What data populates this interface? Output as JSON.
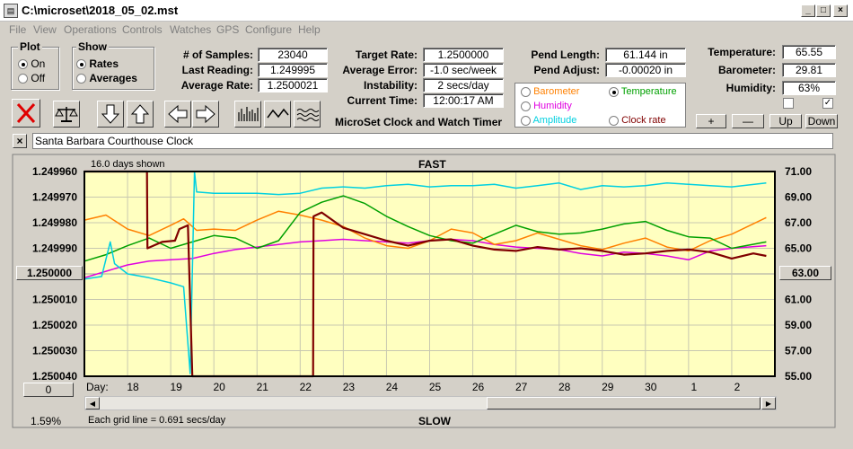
{
  "window": {
    "title": "C:\\microset\\2018_05_02.mst",
    "minimize": "_",
    "maximize": "□",
    "close": "×"
  },
  "menu": [
    "File",
    "View",
    "Operations",
    "Controls",
    "Watches",
    "GPS",
    "Configure",
    "Help"
  ],
  "plot_group": {
    "title": "Plot",
    "options": [
      "On",
      "Off"
    ],
    "selected": "On"
  },
  "show_group": {
    "title": "Show",
    "options": [
      "Rates",
      "Averages"
    ],
    "selected": "Rates"
  },
  "stats": {
    "num_samples_label": "# of Samples:",
    "num_samples": "23040",
    "last_reading_label": "Last Reading:",
    "last_reading": "1.249995",
    "average_rate_label": "Average Rate:",
    "average_rate": "1.2500021",
    "target_rate_label": "Target Rate:",
    "target_rate": "1.2500000",
    "average_error_label": "Average Error:",
    "average_error": "-1.0 sec/week",
    "instability_label": "Instability:",
    "instability": "2 secs/day",
    "current_time_label": "Current Time:",
    "current_time": "12:00:17 AM",
    "pend_length_label": "Pend Length:",
    "pend_length": "61.144 in",
    "pend_adjust_label": "Pend Adjust:",
    "pend_adjust": "-0.00020 in",
    "temperature_label": "Temperature:",
    "temperature": "65.55",
    "barometer_label": "Barometer:",
    "barometer": "29.81",
    "humidity_label": "Humidity:",
    "humidity": "63%"
  },
  "app_title": "MicroSet Clock and Watch Timer",
  "legend": {
    "items": [
      {
        "label": "Barometer",
        "color": "#ff8000",
        "selected": false
      },
      {
        "label": "Temperature",
        "color": "#00a000",
        "selected": true
      },
      {
        "label": "Humidity",
        "color": "#e000e0",
        "selected": false
      },
      {
        "label": "Clock rate",
        "color": "#800000",
        "selected": false
      },
      {
        "label": "Amplitude",
        "color": "#00d0e0",
        "selected": false
      }
    ]
  },
  "right_buttons": {
    "plus": "+",
    "minus": "—",
    "up": "Up",
    "down": "Down"
  },
  "checkboxes": [
    {
      "checked": false
    },
    {
      "checked": true
    }
  ],
  "description": {
    "close": "×",
    "text": "Santa Barbara Courthouse Clock"
  },
  "chart_data": {
    "type": "line",
    "top_label": "FAST",
    "bottom_label": "SLOW",
    "days_shown": "16.0 days shown",
    "grid_note": "Each grid line = 0.691 secs/day",
    "percent": "1.59%",
    "day_label": "Day:",
    "left_axis": {
      "ticks": [
        "1.249960",
        "1.249970",
        "1.249980",
        "1.249990",
        "1.250000",
        "1.250010",
        "1.250020",
        "1.250030",
        "1.250040"
      ],
      "range": [
        1.24996,
        1.25004
      ],
      "inverted": true,
      "center_button": "1.250000",
      "zero_button": "0"
    },
    "right_axis": {
      "ticks": [
        "71.00",
        "69.00",
        "67.00",
        "65.00",
        "63.00",
        "61.00",
        "59.00",
        "57.00",
        "55.00"
      ],
      "range": [
        55,
        71
      ],
      "center_button": "63.00"
    },
    "x_axis": {
      "ticks": [
        "18",
        "19",
        "20",
        "21",
        "22",
        "23",
        "24",
        "25",
        "26",
        "27",
        "28",
        "29",
        "30",
        "1",
        "2"
      ],
      "range": [
        17.0,
        33.0
      ]
    },
    "series": [
      {
        "name": "Barometer",
        "color": "#ff8000",
        "x": [
          17.0,
          17.5,
          18.0,
          18.5,
          19.0,
          19.3,
          19.6,
          20.0,
          20.5,
          21.0,
          21.5,
          22.0,
          22.5,
          23.0,
          23.5,
          24.0,
          24.5,
          25.0,
          25.5,
          26.0,
          26.5,
          27.0,
          27.5,
          28.0,
          28.5,
          29.0,
          29.5,
          30.0,
          30.5,
          31.0,
          31.5,
          32.0,
          32.8
        ],
        "values": [
          67.2,
          67.6,
          66.5,
          66.0,
          66.8,
          67.3,
          66.4,
          66.5,
          66.4,
          67.2,
          67.9,
          67.6,
          67.2,
          66.7,
          65.8,
          65.2,
          65.0,
          65.6,
          66.5,
          66.2,
          65.3,
          65.6,
          66.2,
          65.7,
          65.2,
          64.9,
          65.4,
          65.8,
          65.1,
          64.8,
          65.6,
          66.1,
          67.4
        ]
      },
      {
        "name": "Temperature",
        "color": "#00a000",
        "x": [
          17.0,
          17.5,
          18.0,
          18.5,
          19.0,
          19.5,
          20.0,
          20.5,
          21.0,
          21.5,
          22.0,
          22.5,
          23.0,
          23.5,
          24.0,
          24.5,
          25.0,
          25.5,
          26.0,
          26.5,
          27.0,
          27.5,
          28.0,
          28.5,
          29.0,
          29.5,
          30.0,
          30.5,
          31.0,
          31.5,
          32.0,
          32.8
        ],
        "values": [
          64.0,
          64.5,
          65.2,
          65.8,
          65.0,
          65.5,
          66.0,
          65.8,
          65.0,
          65.6,
          67.8,
          68.6,
          69.1,
          68.5,
          67.5,
          66.7,
          66.0,
          65.6,
          65.4,
          66.1,
          66.8,
          66.3,
          66.1,
          66.2,
          66.5,
          66.9,
          67.1,
          66.4,
          65.9,
          65.8,
          65.0,
          65.5
        ]
      },
      {
        "name": "Humidity",
        "color": "#e000e0",
        "x": [
          17.0,
          17.5,
          18.0,
          18.5,
          19.0,
          19.5,
          20.0,
          20.5,
          21.0,
          21.5,
          22.0,
          22.5,
          23.0,
          23.5,
          24.0,
          24.5,
          25.0,
          25.5,
          26.0,
          26.5,
          27.0,
          27.5,
          28.0,
          28.5,
          29.0,
          29.5,
          30.0,
          30.5,
          31.0,
          31.5,
          32.0,
          32.8
        ],
        "values": [
          62.7,
          63.2,
          63.7,
          64.0,
          64.1,
          64.2,
          64.6,
          64.9,
          65.1,
          65.3,
          65.5,
          65.6,
          65.7,
          65.6,
          65.5,
          65.4,
          65.6,
          65.7,
          65.6,
          65.3,
          65.1,
          65.0,
          64.9,
          64.6,
          64.4,
          64.7,
          64.6,
          64.4,
          64.1,
          64.8,
          65.0,
          65.2
        ]
      },
      {
        "name": "Clock rate",
        "color": "#800000",
        "x": [
          17.0,
          18.45,
          18.46,
          18.8,
          19.1,
          19.2,
          19.4,
          19.5,
          19.51,
          20.0,
          20.5,
          21.0,
          21.5,
          22.0,
          22.3,
          22.31,
          22.5,
          23.0,
          23.5,
          24.0,
          24.5,
          25.0,
          25.5,
          26.0,
          26.5,
          27.0,
          27.5,
          28.0,
          28.5,
          29.0,
          29.5,
          30.0,
          30.5,
          31.0,
          31.5,
          32.0,
          32.5,
          32.8
        ],
        "values": [
          71.0,
          71.0,
          65.0,
          65.5,
          65.6,
          66.5,
          66.8,
          55.0,
          55.0,
          55.0,
          55.0,
          55.0,
          55.0,
          55.0,
          55.0,
          67.5,
          67.8,
          66.6,
          66.1,
          65.6,
          65.2,
          65.6,
          65.7,
          65.2,
          64.9,
          64.8,
          65.1,
          64.9,
          65.0,
          64.8,
          64.5,
          64.6,
          64.8,
          64.9,
          64.7,
          64.2,
          64.6,
          64.4
        ]
      },
      {
        "name": "Amplitude",
        "color": "#00d0e0",
        "x": [
          17.0,
          17.4,
          17.6,
          17.7,
          18.0,
          18.5,
          19.0,
          19.3,
          19.45,
          19.55,
          19.6,
          20.0,
          20.5,
          21.0,
          21.5,
          22.0,
          22.5,
          23.0,
          23.5,
          24.0,
          24.5,
          25.0,
          25.5,
          26.0,
          26.5,
          27.0,
          27.5,
          28.0,
          28.5,
          29.0,
          29.5,
          30.0,
          30.5,
          31.0,
          31.5,
          32.0,
          32.8
        ],
        "values": [
          62.6,
          62.8,
          65.5,
          63.8,
          63.0,
          62.7,
          62.3,
          62.0,
          55.2,
          71.0,
          69.4,
          69.3,
          69.3,
          69.3,
          69.2,
          69.3,
          69.7,
          69.8,
          69.7,
          69.9,
          70.0,
          69.8,
          69.9,
          69.9,
          70.0,
          69.7,
          69.9,
          70.1,
          69.6,
          69.9,
          69.8,
          69.9,
          70.1,
          70.0,
          69.9,
          69.8,
          70.1
        ]
      }
    ]
  }
}
